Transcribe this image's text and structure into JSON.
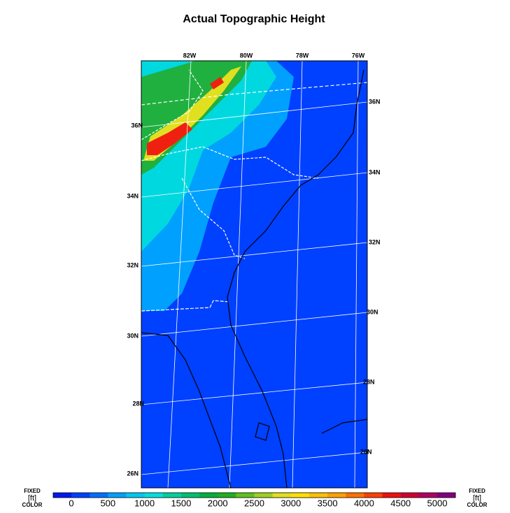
{
  "title": "Actual Topographic Height",
  "longitude_labels": [
    "82W",
    "80W",
    "78W",
    "76W"
  ],
  "latitude_labels_left": [
    "36N",
    "34N",
    "32N",
    "30N",
    "28N",
    "26N"
  ],
  "latitude_labels_right": [
    "36N",
    "34N",
    "32N",
    "30N",
    "28N",
    "26N"
  ],
  "colorbar": {
    "left_legend": {
      "kind": "FIXED",
      "units": "[ft]",
      "mode": "COLOR"
    },
    "right_legend": {
      "kind": "FIXED",
      "units": "[ft]",
      "mode": "COLOR"
    },
    "ticks": [
      0,
      500,
      1000,
      1500,
      2000,
      2500,
      3000,
      3500,
      4000,
      4500,
      5000
    ],
    "colors": [
      "#0018f0",
      "#0040ff",
      "#0070ff",
      "#00a0ff",
      "#00c8f0",
      "#00e0e0",
      "#00d0a0",
      "#00c070",
      "#00b040",
      "#20b020",
      "#60c020",
      "#a0d020",
      "#e0e020",
      "#ffe000",
      "#ffc000",
      "#ffa000",
      "#ff7000",
      "#ff4000",
      "#f01010",
      "#d00030",
      "#b00060",
      "#800080"
    ]
  }
}
